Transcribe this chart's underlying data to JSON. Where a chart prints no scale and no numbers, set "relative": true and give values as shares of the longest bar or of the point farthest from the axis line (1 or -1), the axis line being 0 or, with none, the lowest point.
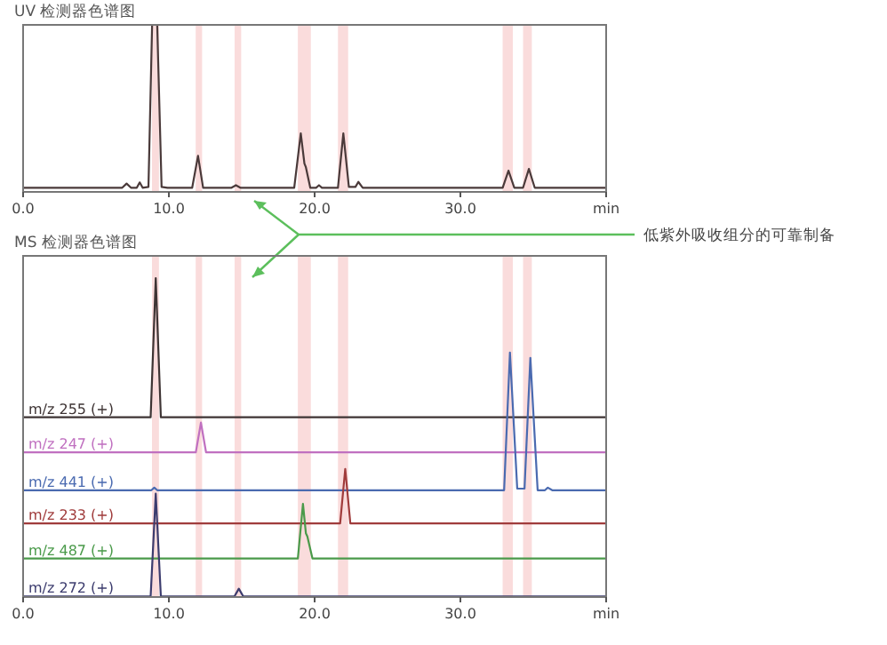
{
  "chart_data": [
    {
      "type": "line",
      "title": "UV 检测器色谱图",
      "relative": true,
      "xlim": [
        0,
        40
      ],
      "xticks": [
        {
          "value": 0,
          "label": "0.0"
        },
        {
          "value": 10,
          "label": "10.0"
        },
        {
          "value": 20,
          "label": "20.0"
        },
        {
          "value": 30,
          "label": "30.0"
        },
        {
          "value": 40,
          "label": "min"
        }
      ],
      "bands": [
        {
          "axis": "x",
          "from": 8.84,
          "to": 9.32,
          "color": "#fadcdc"
        },
        {
          "axis": "x",
          "from": 11.84,
          "to": 12.28,
          "color": "#fadcdc"
        },
        {
          "axis": "x",
          "from": 14.51,
          "to": 14.96,
          "color": "#fadcdc"
        },
        {
          "axis": "x",
          "from": 18.85,
          "to": 19.74,
          "color": "#fadcdc"
        },
        {
          "axis": "x",
          "from": 21.6,
          "to": 22.3,
          "color": "#fadcdc"
        },
        {
          "axis": "x",
          "from": 32.9,
          "to": 33.6,
          "color": "#fadcdc"
        },
        {
          "axis": "x",
          "from": 34.3,
          "to": 34.9,
          "color": "#fadcdc"
        }
      ],
      "annotations": [
        "低紫外吸收组分的可靠制备"
      ],
      "series": [
        {
          "color": "#4a3a3a",
          "x": [
            0,
            6.8,
            7.1,
            7.4,
            7.8,
            8.0,
            8.2,
            8.6,
            8.85,
            9.2,
            9.5,
            9.9,
            11.6,
            12.0,
            12.35,
            14.3,
            14.6,
            14.9,
            18.6,
            19.05,
            19.3,
            19.4,
            19.7,
            20.1,
            20.3,
            20.5,
            21.6,
            21.97,
            22.35,
            22.8,
            23.0,
            23.3,
            32.9,
            33.3,
            33.7,
            34.3,
            34.7,
            35.1,
            40
          ],
          "values": [
            0.025,
            0.025,
            0.05,
            0.025,
            0.025,
            0.057,
            0.025,
            0.03,
            1,
            1,
            0.03,
            0.025,
            0.025,
            0.216,
            0.025,
            0.025,
            0.04,
            0.025,
            0.025,
            0.35,
            0.17,
            0.148,
            0.025,
            0.025,
            0.04,
            0.025,
            0.025,
            0.35,
            0.03,
            0.03,
            0.06,
            0.025,
            0.025,
            0.127,
            0.025,
            0.025,
            0.138,
            0.025,
            0.025
          ]
        }
      ]
    },
    {
      "type": "line",
      "title": "MS 检测器色谱图",
      "relative": true,
      "xlim": [
        0,
        40
      ],
      "xticks": [
        {
          "value": 0,
          "label": "0.0"
        },
        {
          "value": 10,
          "label": "10.0"
        },
        {
          "value": 20,
          "label": "20.0"
        },
        {
          "value": 30,
          "label": "30.0"
        },
        {
          "value": 40,
          "label": "min"
        }
      ],
      "bands": [
        {
          "axis": "x",
          "from": 8.84,
          "to": 9.32,
          "color": "#fadcdc"
        },
        {
          "axis": "x",
          "from": 11.84,
          "to": 12.28,
          "color": "#fadcdc"
        },
        {
          "axis": "x",
          "from": 14.51,
          "to": 14.96,
          "color": "#fadcdc"
        },
        {
          "axis": "x",
          "from": 18.85,
          "to": 19.74,
          "color": "#fadcdc"
        },
        {
          "axis": "x",
          "from": 21.6,
          "to": 22.3,
          "color": "#fadcdc"
        },
        {
          "axis": "x",
          "from": 32.9,
          "to": 33.6,
          "color": "#fadcdc"
        },
        {
          "axis": "x",
          "from": 34.3,
          "to": 34.9,
          "color": "#fadcdc"
        }
      ],
      "series": [
        {
          "name": "m/z 255 (+)",
          "color": "#3e3434",
          "x": [
            0,
            8.75,
            9.1,
            9.45,
            40
          ],
          "values": [
            0.564,
            0.564,
            1,
            0.564,
            0.564
          ]
        },
        {
          "name": "m/z 247 (+)",
          "color": "#c070c0",
          "x": [
            0,
            11.85,
            12.2,
            12.55,
            40
          ],
          "values": [
            0.454,
            0.454,
            0.547,
            0.454,
            0.454
          ]
        },
        {
          "name": "m/z 441 (+)",
          "color": "#4a6ab0",
          "x": [
            0,
            8.8,
            9.0,
            9.2,
            33.0,
            33.4,
            33.9,
            34.4,
            34.8,
            35.3,
            35.8,
            36.0,
            36.3,
            40
          ],
          "values": [
            0.335,
            0.335,
            0.343,
            0.335,
            0.335,
            0.767,
            0.34,
            0.34,
            0.75,
            0.335,
            0.335,
            0.343,
            0.335,
            0.335
          ]
        },
        {
          "name": "m/z 233 (+)",
          "color": "#a03c3c",
          "x": [
            0,
            21.75,
            22.1,
            22.45,
            40
          ],
          "values": [
            0.231,
            0.231,
            0.402,
            0.231,
            0.231
          ]
        },
        {
          "name": "m/z 487 (+)",
          "color": "#4a9a4a",
          "x": [
            0,
            18.85,
            19.2,
            19.4,
            19.5,
            19.85,
            40
          ],
          "values": [
            0.121,
            0.121,
            0.292,
            0.2,
            0.19,
            0.121,
            0.121
          ]
        },
        {
          "name": "m/z 272 (+)",
          "color": "#3c3c6e",
          "x": [
            0,
            8.75,
            9.1,
            9.45,
            14.5,
            14.8,
            15.1,
            40
          ],
          "values": [
            0.002,
            0.002,
            0.324,
            0.002,
            0.002,
            0.026,
            0.002,
            0.002
          ]
        }
      ]
    }
  ]
}
